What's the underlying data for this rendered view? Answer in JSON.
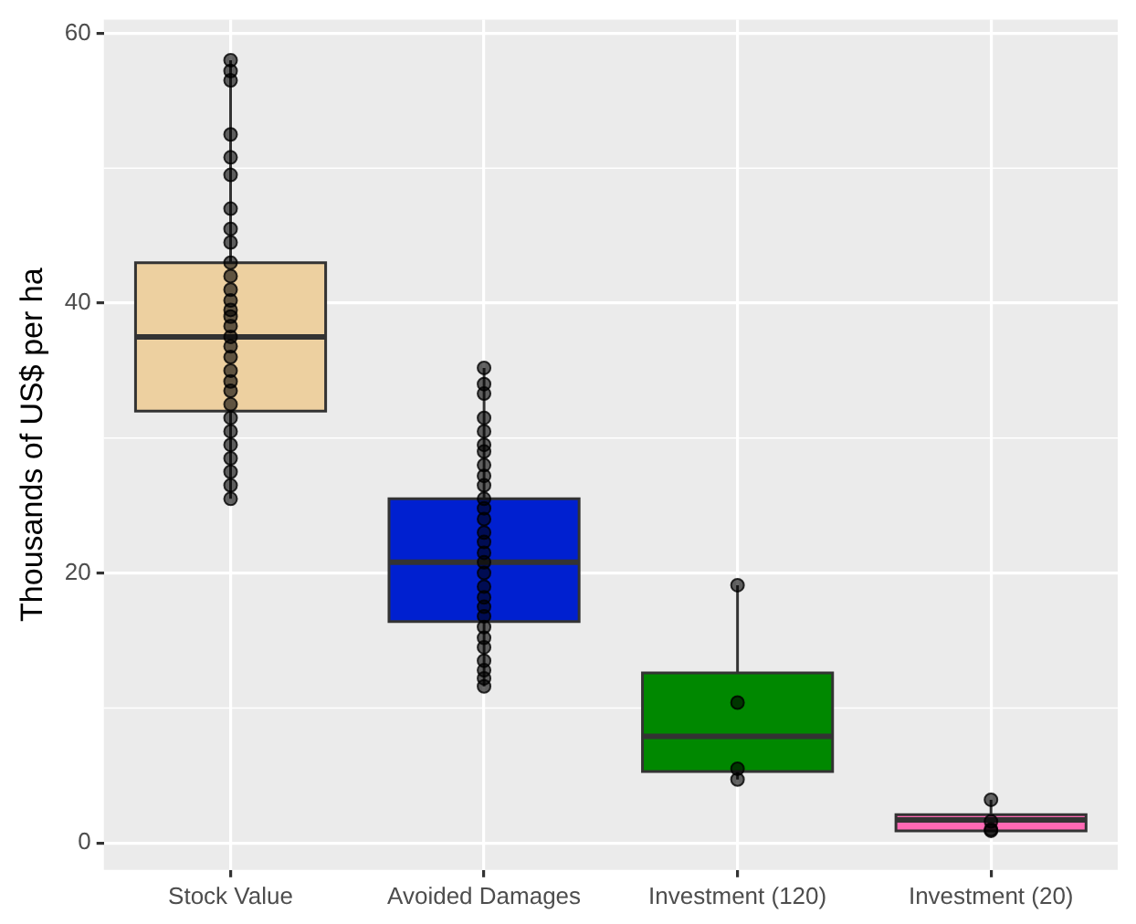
{
  "chart_data": {
    "type": "box",
    "ylabel": "Thousands of US$ per ha",
    "categories": [
      "Stock Value",
      "Avoided Damages",
      "Investment (120)",
      "Investment (20)"
    ],
    "colors": [
      "#edd0a0",
      "#0020d0",
      "#008800",
      "#ff69b4"
    ],
    "boxes": [
      {
        "low": 25.5,
        "q1": 32.0,
        "median": 37.5,
        "q3": 43.0,
        "high": 58.0
      },
      {
        "low": 11.6,
        "q1": 16.4,
        "median": 20.8,
        "q3": 25.5,
        "high": 35.2
      },
      {
        "low": 4.7,
        "q1": 5.3,
        "median": 7.9,
        "q3": 12.6,
        "high": 19.1
      },
      {
        "low": 0.9,
        "q1": 0.9,
        "median": 1.7,
        "q3": 2.1,
        "high": 3.2
      }
    ],
    "ylim": [
      -2,
      61
    ],
    "yticks": [
      0,
      20,
      40,
      60
    ],
    "grid": true,
    "series": [
      {
        "type": "scatter",
        "color": "#000000",
        "x": [
          "Stock Value",
          "Stock Value",
          "Stock Value",
          "Stock Value",
          "Stock Value",
          "Stock Value",
          "Stock Value",
          "Stock Value",
          "Stock Value",
          "Stock Value",
          "Stock Value",
          "Stock Value",
          "Stock Value",
          "Stock Value",
          "Stock Value",
          "Stock Value",
          "Stock Value",
          "Stock Value",
          "Stock Value",
          "Stock Value",
          "Stock Value",
          "Stock Value",
          "Stock Value",
          "Stock Value",
          "Stock Value",
          "Stock Value",
          "Stock Value",
          "Stock Value",
          "Stock Value",
          "Stock Value",
          "Avoided Damages",
          "Avoided Damages",
          "Avoided Damages",
          "Avoided Damages",
          "Avoided Damages",
          "Avoided Damages",
          "Avoided Damages",
          "Avoided Damages",
          "Avoided Damages",
          "Avoided Damages",
          "Avoided Damages",
          "Avoided Damages",
          "Avoided Damages",
          "Avoided Damages",
          "Avoided Damages",
          "Avoided Damages",
          "Avoided Damages",
          "Avoided Damages",
          "Avoided Damages",
          "Avoided Damages",
          "Avoided Damages",
          "Avoided Damages",
          "Avoided Damages",
          "Avoided Damages",
          "Avoided Damages",
          "Avoided Damages",
          "Avoided Damages",
          "Avoided Damages",
          "Avoided Damages",
          "Investment (120)",
          "Investment (120)",
          "Investment (120)",
          "Investment (120)",
          "Investment (20)",
          "Investment (20)",
          "Investment (20)",
          "Investment (20)"
        ],
        "values": [
          58,
          57.2,
          56.5,
          52.5,
          50.8,
          49.5,
          47,
          45.5,
          44.5,
          43,
          42,
          41,
          40.2,
          39.5,
          39,
          38.3,
          37.5,
          36.8,
          36,
          35,
          34.2,
          33.5,
          32.5,
          31.5,
          30.5,
          29.5,
          28.5,
          27.5,
          26.5,
          25.5,
          35.2,
          34,
          33.3,
          31.5,
          30.5,
          29.5,
          29,
          28,
          27.2,
          26.5,
          25.5,
          24.8,
          24,
          23,
          22.3,
          21.5,
          20.8,
          20,
          19,
          18.2,
          17.5,
          16.8,
          16,
          15.2,
          14.5,
          13.5,
          12.8,
          12.2,
          11.6,
          19.1,
          10.4,
          5.5,
          4.7,
          3.2,
          1.6,
          1.0,
          0.9
        ]
      }
    ]
  }
}
